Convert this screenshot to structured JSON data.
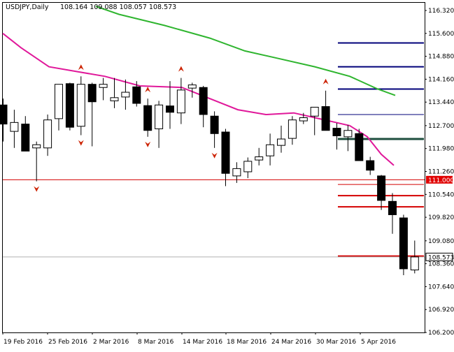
{
  "header": {
    "symbol": "USDJPY,Daily",
    "ohlc": "108.164 109.088 108.057 108.573"
  },
  "price_tag": "108.573",
  "level_tag": "111.000",
  "colors": {
    "bull_fill": "#ffffff",
    "bear_fill": "#000000",
    "candle_stroke": "#000000",
    "fast_ma": "#e0189a",
    "slow_ma": "#2fb52f",
    "red_levels": "#d40000",
    "blue_levels": "#00007a",
    "green_level": "#1e4e3e",
    "fractal": "#cc2200",
    "bid_line": "#b0b0b0",
    "tag_red": "#e00000"
  },
  "chart_data": {
    "type": "candlestick",
    "y_ticks": [
      "116.320",
      "115.600",
      "114.880",
      "114.160",
      "113.440",
      "112.700",
      "111.980",
      "111.260",
      "110.540",
      "109.820",
      "109.080",
      "108.360",
      "107.640",
      "106.920",
      "106.200"
    ],
    "ylim": [
      106.2,
      116.5
    ],
    "x_ticks": [
      "19 Feb 2016",
      "25 Feb 2016",
      "2 Mar 2016",
      "8 Mar 2016",
      "14 Mar 2016",
      "18 Mar 2016",
      "24 Mar 2016",
      "30 Mar 2016",
      "5 Apr 2016"
    ],
    "candles": [
      {
        "o": 113.35,
        "h": 113.55,
        "l": 112.2,
        "c": 112.75
      },
      {
        "o": 112.52,
        "h": 113.2,
        "l": 112.0,
        "c": 112.8
      },
      {
        "o": 112.75,
        "h": 113.0,
        "l": 111.92,
        "c": 111.9
      },
      {
        "o": 112.0,
        "h": 112.2,
        "l": 110.95,
        "c": 112.1
      },
      {
        "o": 112.0,
        "h": 113.05,
        "l": 111.75,
        "c": 112.88
      },
      {
        "o": 112.92,
        "h": 114.0,
        "l": 112.55,
        "c": 114.0
      },
      {
        "o": 114.02,
        "h": 114.05,
        "l": 112.55,
        "c": 112.65
      },
      {
        "o": 112.68,
        "h": 114.25,
        "l": 112.4,
        "c": 114.0
      },
      {
        "o": 114.0,
        "h": 114.05,
        "l": 112.05,
        "c": 113.45
      },
      {
        "o": 113.9,
        "h": 114.2,
        "l": 113.5,
        "c": 114.0
      },
      {
        "o": 113.48,
        "h": 114.2,
        "l": 113.25,
        "c": 113.58
      },
      {
        "o": 113.6,
        "h": 114.15,
        "l": 113.2,
        "c": 113.75
      },
      {
        "o": 113.92,
        "h": 114.1,
        "l": 113.3,
        "c": 113.4
      },
      {
        "o": 113.33,
        "h": 113.55,
        "l": 112.35,
        "c": 112.55
      },
      {
        "o": 112.6,
        "h": 113.48,
        "l": 112.0,
        "c": 113.35
      },
      {
        "o": 113.32,
        "h": 114.1,
        "l": 112.6,
        "c": 113.12
      },
      {
        "o": 113.1,
        "h": 114.2,
        "l": 112.75,
        "c": 113.82
      },
      {
        "o": 113.88,
        "h": 114.05,
        "l": 113.58,
        "c": 113.98
      },
      {
        "o": 113.9,
        "h": 113.95,
        "l": 112.65,
        "c": 113.05
      },
      {
        "o": 113.0,
        "h": 113.15,
        "l": 112.0,
        "c": 112.45
      },
      {
        "o": 112.5,
        "h": 112.6,
        "l": 110.8,
        "c": 111.2
      },
      {
        "o": 111.12,
        "h": 111.55,
        "l": 110.9,
        "c": 111.35
      },
      {
        "o": 111.25,
        "h": 111.7,
        "l": 111.05,
        "c": 111.58
      },
      {
        "o": 111.62,
        "h": 112.0,
        "l": 111.45,
        "c": 111.72
      },
      {
        "o": 111.75,
        "h": 112.45,
        "l": 111.45,
        "c": 112.1
      },
      {
        "o": 112.08,
        "h": 112.7,
        "l": 111.85,
        "c": 112.28
      },
      {
        "o": 112.3,
        "h": 113.0,
        "l": 112.1,
        "c": 112.88
      },
      {
        "o": 112.85,
        "h": 113.1,
        "l": 112.75,
        "c": 112.95
      },
      {
        "o": 113.0,
        "h": 113.25,
        "l": 112.4,
        "c": 113.28
      },
      {
        "o": 113.3,
        "h": 113.8,
        "l": 112.55,
        "c": 112.55
      },
      {
        "o": 112.62,
        "h": 112.78,
        "l": 111.95,
        "c": 112.38
      },
      {
        "o": 112.35,
        "h": 112.72,
        "l": 111.9,
        "c": 112.55
      },
      {
        "o": 112.45,
        "h": 112.6,
        "l": 111.7,
        "c": 111.6
      },
      {
        "o": 111.6,
        "h": 111.72,
        "l": 111.15,
        "c": 111.3
      },
      {
        "o": 111.12,
        "h": 111.15,
        "l": 110.05,
        "c": 110.35
      },
      {
        "o": 110.32,
        "h": 110.58,
        "l": 109.3,
        "c": 109.9
      },
      {
        "o": 109.8,
        "h": 109.9,
        "l": 108.0,
        "c": 108.2
      },
      {
        "o": 108.164,
        "h": 109.088,
        "l": 108.057,
        "c": 108.573
      }
    ],
    "slow_ma": [
      [
        137,
        116.45
      ],
      [
        170,
        116.2
      ],
      [
        235,
        115.85
      ],
      [
        300,
        115.45
      ],
      [
        350,
        115.05
      ],
      [
        400,
        114.8
      ],
      [
        450,
        114.55
      ],
      [
        500,
        114.25
      ],
      [
        540,
        113.85
      ],
      [
        565,
        113.65
      ]
    ],
    "fast_ma": [
      [
        4,
        115.6
      ],
      [
        30,
        115.15
      ],
      [
        70,
        114.55
      ],
      [
        110,
        114.4
      ],
      [
        150,
        114.25
      ],
      [
        200,
        113.95
      ],
      [
        260,
        113.9
      ],
      [
        300,
        113.55
      ],
      [
        340,
        113.2
      ],
      [
        380,
        113.05
      ],
      [
        420,
        113.1
      ],
      [
        450,
        112.95
      ],
      [
        480,
        112.8
      ],
      [
        500,
        112.7
      ],
      [
        525,
        112.35
      ],
      [
        545,
        111.8
      ],
      [
        563,
        111.45
      ]
    ],
    "red_levels": [
      111.0,
      110.5,
      110.15,
      108.6
    ],
    "thin_red_levels": [
      110.85
    ],
    "blue_levels": [
      115.3,
      114.55,
      113.85,
      113.05
    ],
    "green_level": 112.28,
    "bid": 108.573,
    "fractals_up": [
      7,
      13,
      16,
      29
    ],
    "fractals_down": [
      3,
      7,
      13,
      19
    ]
  }
}
